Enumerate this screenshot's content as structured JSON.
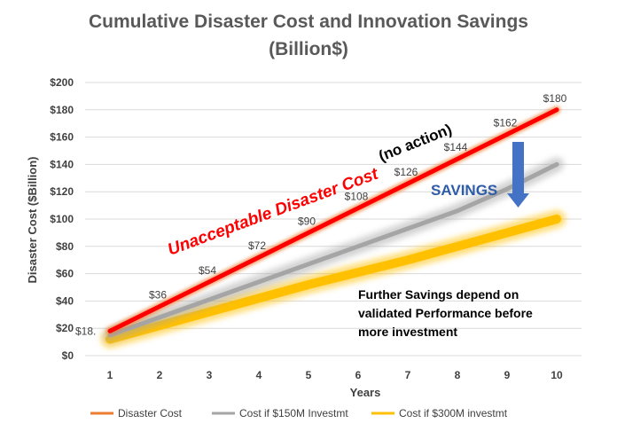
{
  "chart_data": {
    "type": "line",
    "title_line1": "Cumulative Disaster Cost and Innovation Savings",
    "title_line2": "(Billion$)",
    "xlabel": "Years",
    "ylabel": "Disaster Cost ($Billion)",
    "x": [
      1,
      2,
      3,
      4,
      5,
      6,
      7,
      8,
      9,
      10
    ],
    "ylim": [
      0,
      200
    ],
    "yticks": [
      0,
      20,
      40,
      60,
      80,
      100,
      120,
      140,
      160,
      180,
      200
    ],
    "ytick_labels": [
      "$0",
      "$20",
      "$40",
      "$60",
      "$80",
      "$100",
      "$120",
      "$140",
      "$160",
      "$180",
      "$200"
    ],
    "grid": true,
    "legend_position": "bottom",
    "series": [
      {
        "name": "Disaster Cost",
        "color": "#ed7d31",
        "values": [
          18,
          36,
          54,
          72,
          90,
          108,
          126,
          144,
          162,
          180
        ],
        "data_labels": [
          "$18.",
          "$36",
          "$54",
          "$72",
          "$90",
          "$108",
          "$126",
          "$144",
          "$162",
          "$180"
        ]
      },
      {
        "name": "Cost if $150M Investmt",
        "color": "#a5a5a5",
        "values": [
          15,
          28,
          41,
          54,
          67,
          80,
          93,
          106,
          122,
          140
        ]
      },
      {
        "name": "Cost if $300M investmt",
        "color": "#ffc000",
        "values": [
          12,
          22,
          32,
          42,
          52,
          61,
          70,
          80,
          90,
          100
        ]
      }
    ],
    "annotations": {
      "unacceptable_main": "Unacceptable Disaster Cost",
      "unacceptable_note": "(no action)",
      "savings": "SAVINGS",
      "further_line1": "Further Savings depend on",
      "further_line2": "validated Performance before",
      "further_line3": "more investment"
    },
    "colors": {
      "red_overlay": "#ff0000",
      "savings_blue": "#2e5ca8",
      "arrow_blue": "#4472c4",
      "gridline": "#d9d9d9"
    }
  }
}
